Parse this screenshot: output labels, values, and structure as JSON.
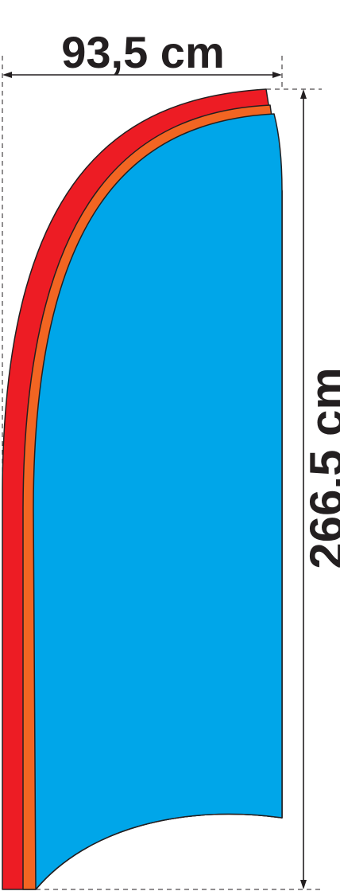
{
  "diagram": {
    "width_label": "93,5 cm",
    "height_label": "266,5 cm"
  },
  "colors": {
    "outer_band": "#ed1c24",
    "inner_band": "#f26522",
    "flag_body": "#00a6e9",
    "outline": "#231f20",
    "dimension_line": "#231f20"
  }
}
